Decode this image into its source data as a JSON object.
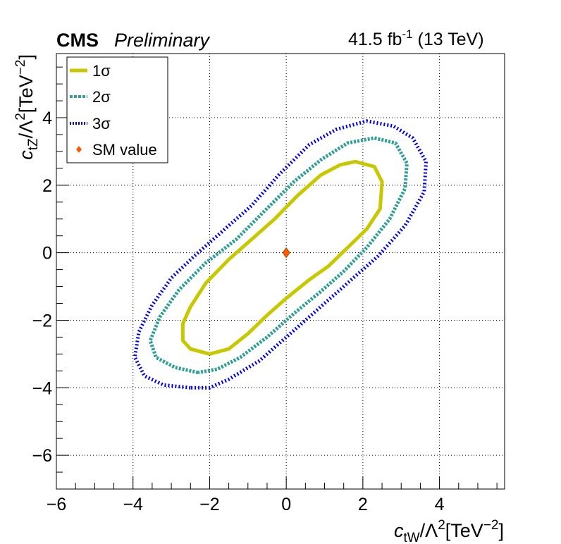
{
  "header": {
    "experiment": "CMS",
    "status": "Preliminary",
    "lumi_value": "41.5 fb",
    "lumi_exp": "-1",
    "energy": " (13 TeV)"
  },
  "chart_data": {
    "type": "scatter",
    "title": "",
    "xlabel": "c_tW/Λ^2[TeV^-2]",
    "ylabel": "c_tZ/Λ^2[TeV^-2]",
    "xlim": [
      -6,
      5.7
    ],
    "ylim": [
      -7,
      5.9
    ],
    "xticks": [
      -6,
      -4,
      -2,
      0,
      2,
      4
    ],
    "yticks": [
      -6,
      -4,
      -2,
      0,
      2,
      4
    ],
    "x_tick_labels": [
      "−6",
      "−4",
      "−2",
      "0",
      "2",
      "4"
    ],
    "y_tick_labels": [
      "−6",
      "−4",
      "−2",
      "0",
      "2",
      "4"
    ],
    "grid": true,
    "legend_position": "top-left",
    "legend": [
      {
        "label": "1σ",
        "key": "s1"
      },
      {
        "label": "2σ",
        "key": "s2"
      },
      {
        "label": "3σ",
        "key": "s3"
      },
      {
        "label": "SM value",
        "key": "sm"
      }
    ],
    "series": [
      {
        "name": "1σ",
        "style": "line",
        "color": "#c8c800",
        "points": [
          [
            -2.0,
            -3.0
          ],
          [
            -2.5,
            -2.85
          ],
          [
            -2.7,
            -2.6
          ],
          [
            -2.7,
            -2.1
          ],
          [
            -2.5,
            -1.6
          ],
          [
            -2.1,
            -0.9
          ],
          [
            -1.5,
            -0.2
          ],
          [
            -0.9,
            0.4
          ],
          [
            -0.3,
            1.0
          ],
          [
            0.3,
            1.7
          ],
          [
            0.9,
            2.3
          ],
          [
            1.4,
            2.6
          ],
          [
            1.8,
            2.7
          ],
          [
            2.3,
            2.55
          ],
          [
            2.5,
            2.1
          ],
          [
            2.45,
            1.3
          ],
          [
            2.1,
            0.7
          ],
          [
            1.6,
            0.15
          ],
          [
            1.1,
            -0.4
          ],
          [
            0.6,
            -0.8
          ],
          [
            0.0,
            -1.35
          ],
          [
            -0.5,
            -1.85
          ],
          [
            -1.0,
            -2.4
          ],
          [
            -1.5,
            -2.85
          ],
          [
            -2.0,
            -3.0
          ]
        ]
      },
      {
        "name": "2σ",
        "style": "dashed",
        "color": "#2e9e96",
        "points": [
          [
            -2.3,
            -3.55
          ],
          [
            -2.9,
            -3.4
          ],
          [
            -3.4,
            -3.1
          ],
          [
            -3.55,
            -2.6
          ],
          [
            -3.3,
            -1.9
          ],
          [
            -2.8,
            -1.1
          ],
          [
            -2.1,
            -0.3
          ],
          [
            -1.3,
            0.4
          ],
          [
            -0.6,
            1.2
          ],
          [
            0.2,
            2.1
          ],
          [
            0.9,
            2.75
          ],
          [
            1.6,
            3.25
          ],
          [
            2.3,
            3.4
          ],
          [
            2.85,
            3.25
          ],
          [
            3.15,
            2.65
          ],
          [
            3.1,
            1.9
          ],
          [
            2.7,
            1.0
          ],
          [
            2.1,
            0.15
          ],
          [
            1.5,
            -0.55
          ],
          [
            0.9,
            -1.15
          ],
          [
            0.2,
            -1.8
          ],
          [
            -0.5,
            -2.5
          ],
          [
            -1.2,
            -3.1
          ],
          [
            -1.8,
            -3.45
          ],
          [
            -2.3,
            -3.55
          ]
        ]
      },
      {
        "name": "3σ",
        "style": "dotted",
        "color": "#0000e6",
        "points": [
          [
            -2.5,
            -4.0
          ],
          [
            -3.2,
            -3.92
          ],
          [
            -3.7,
            -3.65
          ],
          [
            -3.95,
            -3.1
          ],
          [
            -3.85,
            -2.35
          ],
          [
            -3.5,
            -1.55
          ],
          [
            -3.0,
            -0.75
          ],
          [
            -2.4,
            -0.1
          ],
          [
            -1.7,
            0.6
          ],
          [
            -0.9,
            1.4
          ],
          [
            -0.2,
            2.3
          ],
          [
            0.6,
            3.2
          ],
          [
            1.3,
            3.65
          ],
          [
            2.1,
            3.9
          ],
          [
            2.8,
            3.75
          ],
          [
            3.3,
            3.4
          ],
          [
            3.65,
            2.7
          ],
          [
            3.6,
            1.8
          ],
          [
            3.1,
            0.8
          ],
          [
            2.4,
            -0.1
          ],
          [
            1.6,
            -0.9
          ],
          [
            0.8,
            -1.7
          ],
          [
            0.0,
            -2.5
          ],
          [
            -0.7,
            -3.2
          ],
          [
            -1.5,
            -3.75
          ],
          [
            -2.0,
            -4.0
          ],
          [
            -2.5,
            -4.0
          ]
        ]
      },
      {
        "name": "SM value",
        "style": "marker",
        "color": "#ff5a00",
        "points": [
          [
            0,
            0
          ]
        ]
      }
    ]
  }
}
